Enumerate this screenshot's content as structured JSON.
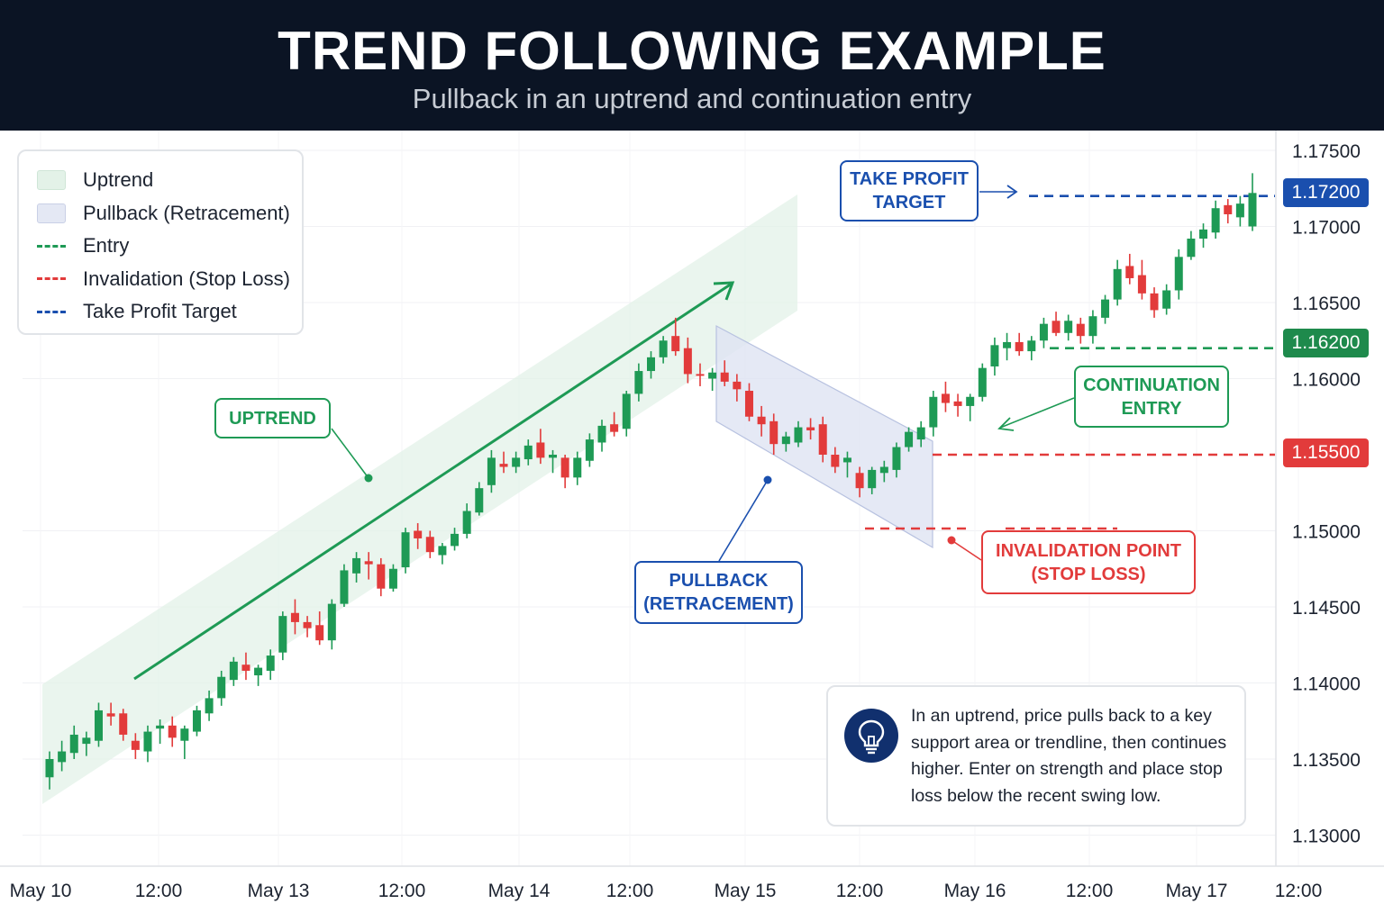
{
  "header": {
    "title": "TREND FOLLOWING EXAMPLE",
    "subtitle": "Pullback in an uptrend and continuation entry"
  },
  "legend": [
    {
      "label": "Uptrend",
      "kind": "fill",
      "color": "#e3f2e8",
      "border": "#cfe6d7"
    },
    {
      "label": "Pullback (Retracement)",
      "kind": "fill",
      "color": "#e4e8f4",
      "border": "#c9d0e6"
    },
    {
      "label": "Entry",
      "kind": "dash",
      "color": "#1e9a55"
    },
    {
      "label": "Invalidation (Stop Loss)",
      "kind": "dash",
      "color": "#e23b3b"
    },
    {
      "label": "Take Profit Target",
      "kind": "dash",
      "color": "#1a4fae"
    }
  ],
  "callouts": {
    "uptrend": "UPTREND",
    "pullback_line1": "PULLBACK",
    "pullback_line2": "(RETRACEMENT)",
    "take_profit_line1": "TAKE PROFIT",
    "take_profit_line2": "TARGET",
    "continuation_line1": "CONTINUATION",
    "continuation_line2": "ENTRY",
    "invalidation_line1": "INVALIDATION POINT",
    "invalidation_line2": "(STOP LOSS)"
  },
  "info": {
    "icon": "lightbulb-icon",
    "text": "In an uptrend, price pulls back to a key support area or trendline, then continues higher. Enter on strength and place stop loss below the recent swing low."
  },
  "price_tags": {
    "take_profit": "1.17200",
    "entry": "1.16200",
    "stop_loss": "1.15500"
  },
  "colors": {
    "bull": "#1e9a55",
    "bear": "#e23b3b",
    "target": "#1a4fae",
    "header_bg": "#0b1424"
  },
  "chart_data": {
    "type": "candlestick",
    "title": "TREND FOLLOWING EXAMPLE",
    "subtitle": "Pullback in an uptrend and continuation entry",
    "y_ticks": [
      "1.17500",
      "1.17000",
      "1.16500",
      "1.16000",
      "1.15000",
      "1.14500",
      "1.14000",
      "1.13500",
      "1.13000"
    ],
    "y_tick_values": [
      1.175,
      1.17,
      1.165,
      1.16,
      1.15,
      1.145,
      1.14,
      1.135,
      1.13
    ],
    "x_ticks": [
      "May 10",
      "12:00",
      "May 13",
      "12:00",
      "May 14",
      "12:00",
      "May 15",
      "12:00",
      "May 16",
      "12:00",
      "May 17",
      "12:00"
    ],
    "levels": {
      "take_profit": 1.172,
      "entry": 1.162,
      "stop_loss": 1.155,
      "invalidation": 1.15
    },
    "ohlc": [
      [
        1.1338,
        1.1355,
        1.133,
        1.135
      ],
      [
        1.1348,
        1.1362,
        1.1342,
        1.1355
      ],
      [
        1.1354,
        1.1372,
        1.135,
        1.1366
      ],
      [
        1.136,
        1.1368,
        1.1352,
        1.1364
      ],
      [
        1.1362,
        1.1387,
        1.1358,
        1.1382
      ],
      [
        1.138,
        1.1387,
        1.1372,
        1.1378
      ],
      [
        1.138,
        1.1383,
        1.1362,
        1.1366
      ],
      [
        1.1362,
        1.1367,
        1.135,
        1.1356
      ],
      [
        1.1355,
        1.1372,
        1.1348,
        1.1368
      ],
      [
        1.137,
        1.1376,
        1.136,
        1.1372
      ],
      [
        1.1372,
        1.1378,
        1.1358,
        1.1364
      ],
      [
        1.1362,
        1.1372,
        1.135,
        1.137
      ],
      [
        1.1368,
        1.1385,
        1.1365,
        1.1382
      ],
      [
        1.138,
        1.1395,
        1.1375,
        1.139
      ],
      [
        1.139,
        1.1408,
        1.1385,
        1.1404
      ],
      [
        1.1402,
        1.1417,
        1.1398,
        1.1414
      ],
      [
        1.1412,
        1.142,
        1.1402,
        1.1408
      ],
      [
        1.1405,
        1.1412,
        1.1398,
        1.141
      ],
      [
        1.1408,
        1.1422,
        1.1402,
        1.1418
      ],
      [
        1.142,
        1.1447,
        1.1415,
        1.1444
      ],
      [
        1.1446,
        1.1455,
        1.1432,
        1.144
      ],
      [
        1.144,
        1.1444,
        1.143,
        1.1436
      ],
      [
        1.1438,
        1.1447,
        1.1425,
        1.1428
      ],
      [
        1.1428,
        1.1455,
        1.1422,
        1.1452
      ],
      [
        1.1452,
        1.1478,
        1.145,
        1.1474
      ],
      [
        1.1472,
        1.1486,
        1.1466,
        1.1482
      ],
      [
        1.148,
        1.1486,
        1.1468,
        1.1478
      ],
      [
        1.1478,
        1.1482,
        1.1457,
        1.1462
      ],
      [
        1.1462,
        1.1478,
        1.146,
        1.1475
      ],
      [
        1.1476,
        1.1502,
        1.1472,
        1.1499
      ],
      [
        1.15,
        1.1505,
        1.1488,
        1.1495
      ],
      [
        1.1496,
        1.15,
        1.1482,
        1.1486
      ],
      [
        1.1484,
        1.1492,
        1.1478,
        1.149
      ],
      [
        1.149,
        1.1502,
        1.1487,
        1.1498
      ],
      [
        1.1498,
        1.1518,
        1.1495,
        1.1513
      ],
      [
        1.1512,
        1.1532,
        1.151,
        1.1528
      ],
      [
        1.153,
        1.1553,
        1.1525,
        1.1548
      ],
      [
        1.1544,
        1.1552,
        1.1538,
        1.1542
      ],
      [
        1.1542,
        1.1552,
        1.1538,
        1.1548
      ],
      [
        1.1547,
        1.156,
        1.1543,
        1.1556
      ],
      [
        1.1558,
        1.1567,
        1.1544,
        1.1548
      ],
      [
        1.1548,
        1.1553,
        1.1538,
        1.155
      ],
      [
        1.1548,
        1.155,
        1.1528,
        1.1535
      ],
      [
        1.1535,
        1.1552,
        1.153,
        1.1548
      ],
      [
        1.1546,
        1.1564,
        1.1542,
        1.156
      ],
      [
        1.1558,
        1.1573,
        1.1552,
        1.1569
      ],
      [
        1.157,
        1.1578,
        1.1562,
        1.1565
      ],
      [
        1.1567,
        1.1592,
        1.1562,
        1.159
      ],
      [
        1.159,
        1.161,
        1.1585,
        1.1605
      ],
      [
        1.1605,
        1.1618,
        1.16,
        1.1614
      ],
      [
        1.1614,
        1.1628,
        1.161,
        1.1625
      ],
      [
        1.1628,
        1.164,
        1.1615,
        1.1618
      ],
      [
        1.162,
        1.1627,
        1.1597,
        1.1603
      ],
      [
        1.1603,
        1.161,
        1.1595,
        1.1602
      ],
      [
        1.16,
        1.1607,
        1.1592,
        1.1604
      ],
      [
        1.1604,
        1.1612,
        1.1595,
        1.1598
      ],
      [
        1.1598,
        1.1603,
        1.1585,
        1.1593
      ],
      [
        1.1592,
        1.1597,
        1.1572,
        1.1575
      ],
      [
        1.1575,
        1.1582,
        1.1562,
        1.157
      ],
      [
        1.1572,
        1.1577,
        1.155,
        1.1557
      ],
      [
        1.1557,
        1.1565,
        1.1552,
        1.1562
      ],
      [
        1.1558,
        1.1572,
        1.1555,
        1.1568
      ],
      [
        1.1568,
        1.1574,
        1.156,
        1.1566
      ],
      [
        1.157,
        1.1575,
        1.1545,
        1.155
      ],
      [
        1.155,
        1.1555,
        1.1538,
        1.1542
      ],
      [
        1.1545,
        1.1552,
        1.1535,
        1.1548
      ],
      [
        1.1538,
        1.1542,
        1.1522,
        1.1528
      ],
      [
        1.1528,
        1.1542,
        1.1524,
        1.154
      ],
      [
        1.1538,
        1.1546,
        1.1532,
        1.1542
      ],
      [
        1.154,
        1.1558,
        1.1535,
        1.1555
      ],
      [
        1.1555,
        1.1568,
        1.1552,
        1.1565
      ],
      [
        1.156,
        1.1572,
        1.1555,
        1.1568
      ],
      [
        1.1568,
        1.1592,
        1.1562,
        1.1588
      ],
      [
        1.159,
        1.1598,
        1.1578,
        1.1584
      ],
      [
        1.1585,
        1.159,
        1.1575,
        1.1582
      ],
      [
        1.1582,
        1.159,
        1.1572,
        1.1588
      ],
      [
        1.1588,
        1.161,
        1.1585,
        1.1607
      ],
      [
        1.1608,
        1.1627,
        1.1602,
        1.1622
      ],
      [
        1.162,
        1.163,
        1.1612,
        1.1624
      ],
      [
        1.1624,
        1.163,
        1.1615,
        1.1618
      ],
      [
        1.1618,
        1.1628,
        1.1612,
        1.1625
      ],
      [
        1.1625,
        1.164,
        1.162,
        1.1636
      ],
      [
        1.1638,
        1.1644,
        1.1628,
        1.163
      ],
      [
        1.163,
        1.1642,
        1.1625,
        1.1638
      ],
      [
        1.1636,
        1.164,
        1.1623,
        1.1628
      ],
      [
        1.1628,
        1.1645,
        1.1623,
        1.1641
      ],
      [
        1.164,
        1.1655,
        1.1636,
        1.1652
      ],
      [
        1.1652,
        1.1678,
        1.1648,
        1.1672
      ],
      [
        1.1674,
        1.1682,
        1.1662,
        1.1666
      ],
      [
        1.1668,
        1.1678,
        1.1652,
        1.1656
      ],
      [
        1.1656,
        1.166,
        1.164,
        1.1645
      ],
      [
        1.1646,
        1.1662,
        1.1642,
        1.1658
      ],
      [
        1.1658,
        1.1685,
        1.1652,
        1.168
      ],
      [
        1.168,
        1.1697,
        1.1678,
        1.1692
      ],
      [
        1.1692,
        1.1702,
        1.1686,
        1.1698
      ],
      [
        1.1696,
        1.1717,
        1.1692,
        1.1712
      ],
      [
        1.1714,
        1.1718,
        1.1702,
        1.1708
      ],
      [
        1.1706,
        1.172,
        1.17,
        1.1715
      ],
      [
        1.17,
        1.1735,
        1.1697,
        1.1722
      ]
    ]
  }
}
